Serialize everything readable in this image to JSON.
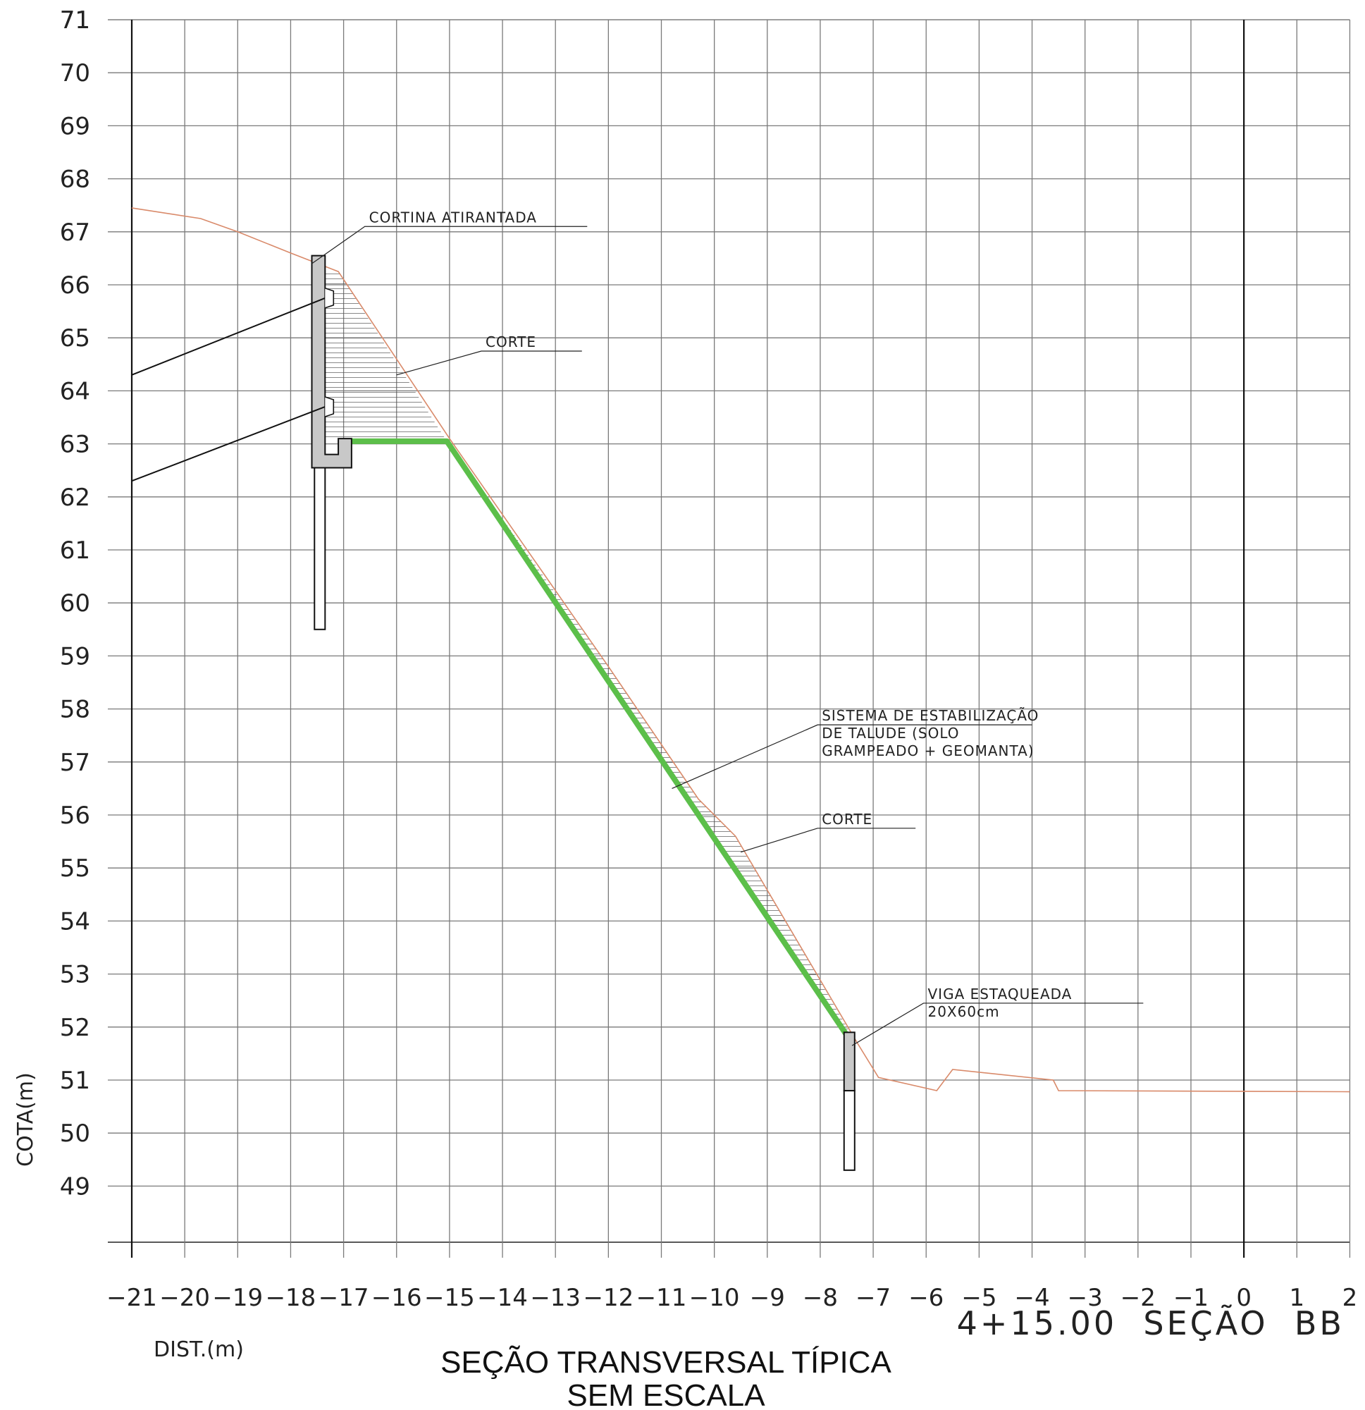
{
  "chart_data": {
    "type": "cross-section",
    "xlabel": "DIST.(m)",
    "ylabel": "COTA(m)",
    "xlim": [
      -21,
      2
    ],
    "ylim": [
      48,
      71
    ],
    "x_ticks": [
      -21,
      -20,
      -19,
      -18,
      -17,
      -16,
      -15,
      -14,
      -13,
      -12,
      -11,
      -10,
      -9,
      -8,
      -7,
      -6,
      -5,
      -4,
      -3,
      -2,
      -1,
      0,
      1,
      2
    ],
    "x_tick_labels": [
      "−21",
      "−20",
      "−19",
      "−18",
      "−17",
      "−16",
      "−15",
      "−14",
      "−13",
      "−12",
      "−11",
      "−10",
      "−9",
      "−8",
      "−7",
      "−6",
      "−5",
      "−4",
      "−3",
      "−2",
      "−1",
      "0",
      "1",
      "2"
    ],
    "y_ticks": [
      49,
      50,
      51,
      52,
      53,
      54,
      55,
      56,
      57,
      58,
      59,
      60,
      61,
      62,
      63,
      64,
      65,
      66,
      67,
      68,
      69,
      70,
      71
    ],
    "grid": true,
    "axis_line_x": 0,
    "terrain_existing": [
      [
        -21,
        67.45
      ],
      [
        -19.7,
        67.25
      ],
      [
        -19,
        67.0
      ],
      [
        -18,
        66.6
      ],
      [
        -17.1,
        66.25
      ],
      [
        -15,
        63.1
      ],
      [
        -12,
        58.8
      ],
      [
        -10.3,
        56.3
      ],
      [
        -9.6,
        55.6
      ],
      [
        -7.3,
        51.7
      ],
      [
        -6.9,
        51.05
      ],
      [
        -5.8,
        50.8
      ],
      [
        -5.5,
        51.2
      ],
      [
        -3.6,
        51.0
      ],
      [
        -3.5,
        50.8
      ],
      [
        2,
        50.78
      ]
    ],
    "terrain_designed": [
      [
        -16.9,
        63.05
      ],
      [
        -15.05,
        63.05
      ],
      [
        -7.4,
        51.7
      ]
    ],
    "structures": {
      "cortina_atirantada": {
        "x": [
          -17.6,
          -17.35
        ],
        "y": [
          62.55,
          66.55
        ]
      },
      "cortina_base": {
        "x": [
          -17.6,
          -16.85
        ],
        "y": [
          62.55,
          63.1
        ]
      },
      "cortina_stake": {
        "x": [
          -17.55,
          -17.35
        ],
        "y": [
          59.5,
          62.55
        ]
      },
      "viga_estaqueada": {
        "x": [
          -7.55,
          -7.35
        ],
        "y": [
          50.8,
          51.9
        ]
      },
      "viga_stake": {
        "x": [
          -7.55,
          -7.35
        ],
        "y": [
          49.3,
          50.8
        ]
      },
      "tirantes": [
        {
          "from": [
            -21,
            64.3
          ],
          "to": [
            -17.35,
            65.75
          ]
        },
        {
          "from": [
            -21,
            62.3
          ],
          "to": [
            -17.35,
            63.7
          ]
        }
      ]
    },
    "annotations": [
      {
        "text": "CORTINA ATIRANTADA",
        "target": [
          -17.6,
          66.4
        ],
        "elbow": [
          -16.6,
          67.1
        ],
        "end": [
          -12.4,
          67.1
        ]
      },
      {
        "text": "CORTE",
        "target": [
          -16.0,
          64.3
        ],
        "elbow": [
          -14.4,
          64.75
        ],
        "end": [
          -12.5,
          64.75
        ]
      },
      {
        "text": "SISTEMA DE ESTABILIZAÇÃO\nDE TALUDE (SOLO\nGRAMPEADO + GEOMANTA)",
        "target": [
          -10.8,
          56.5
        ],
        "elbow": [
          -8.05,
          57.7
        ],
        "end": [
          -4.0,
          57.7
        ]
      },
      {
        "text": "CORTE",
        "target": [
          -9.5,
          55.3
        ],
        "elbow": [
          -8.05,
          55.75
        ],
        "end": [
          -6.2,
          55.75
        ]
      },
      {
        "text": "VIGA ESTAQUEADA\n20X60cm",
        "target": [
          -7.4,
          51.65
        ],
        "elbow": [
          -6.05,
          52.45
        ],
        "end": [
          -1.9,
          52.45
        ]
      }
    ]
  },
  "title": "SEÇÃO TRANSVERSAL TÍPICA",
  "subtitle": "SEM ESCALA",
  "section_label": "4+15.00  SEÇÃO  BB",
  "colors": {
    "grid": "#7a7a7a",
    "terrain_existing": "#d98a6a",
    "terrain_designed": "#5cbf4a",
    "structure_fill": "#c8c8c8",
    "hatch": "#555555"
  }
}
